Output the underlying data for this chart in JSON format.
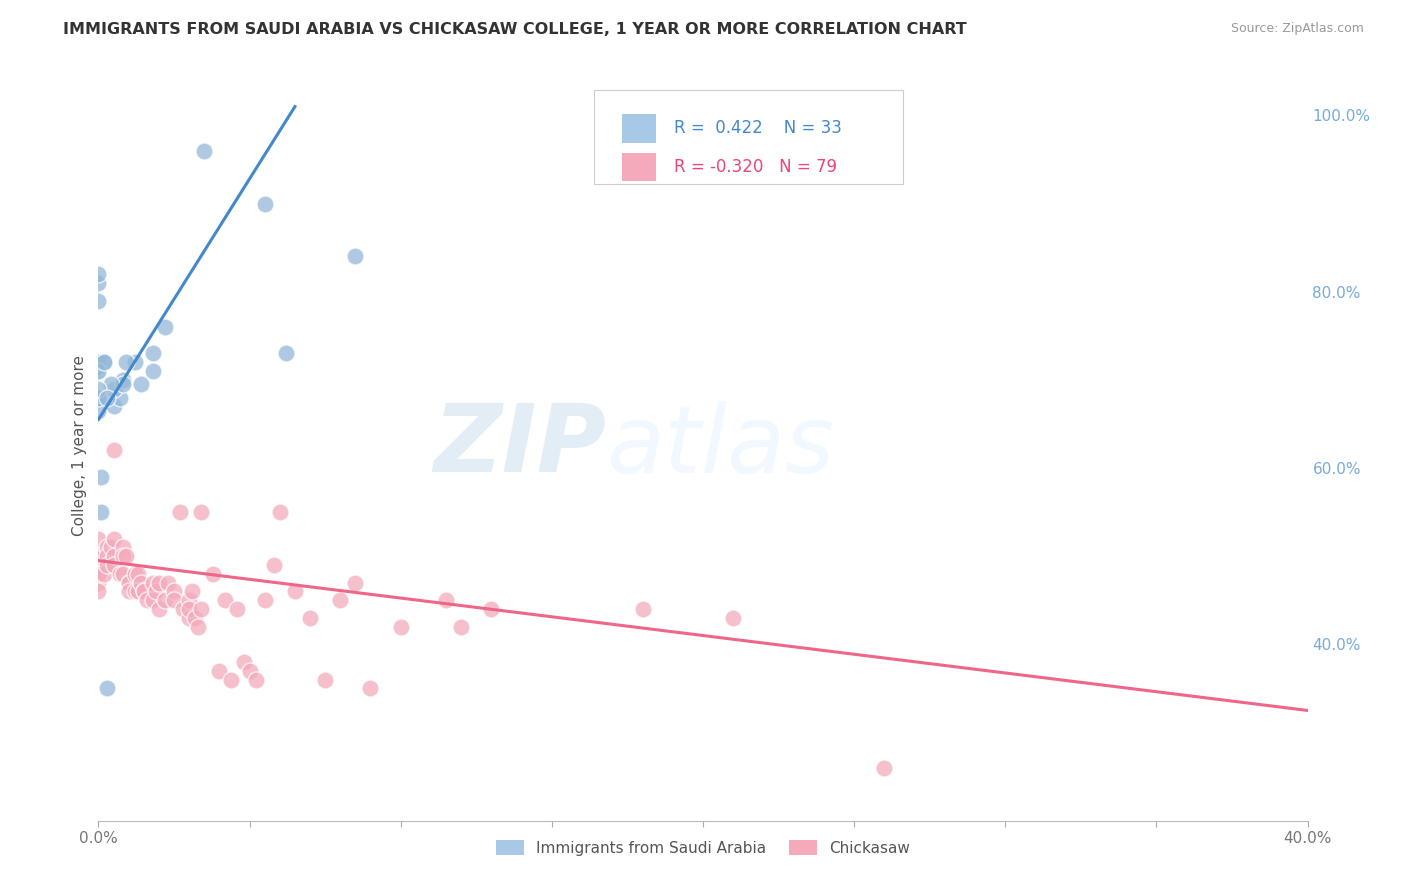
{
  "title": "IMMIGRANTS FROM SAUDI ARABIA VS CHICKASAW COLLEGE, 1 YEAR OR MORE CORRELATION CHART",
  "source": "Source: ZipAtlas.com",
  "ylabel": "College, 1 year or more",
  "xlim": [
    0.0,
    0.4
  ],
  "ylim": [
    0.2,
    1.05
  ],
  "ytick_right_labels": [
    "100.0%",
    "80.0%",
    "60.0%",
    "40.0%"
  ],
  "ytick_right_positions": [
    1.0,
    0.8,
    0.6,
    0.4
  ],
  "blue_color": "#A8C8E8",
  "pink_color": "#F4AABB",
  "blue_dot_color": "#93B8D8",
  "pink_dot_color": "#F4AABB",
  "line_blue_color": "#4488CC",
  "line_pink_color": "#EE6688",
  "legend_R_blue": "0.422",
  "legend_N_blue": "33",
  "legend_R_pink": "-0.320",
  "legend_N_pink": "79",
  "blue_scatter_x": [
    0.035,
    0.0,
    0.0,
    0.005,
    0.007,
    0.012,
    0.014,
    0.018,
    0.018,
    0.005,
    0.008,
    0.008,
    0.009,
    0.0,
    0.0,
    0.0,
    0.0,
    0.002,
    0.004,
    0.0,
    0.0,
    0.002,
    0.003,
    0.0,
    0.0,
    0.0,
    0.022,
    0.055,
    0.001,
    0.003,
    0.062,
    0.085,
    0.001
  ],
  "blue_scatter_y": [
    0.96,
    0.68,
    0.665,
    0.67,
    0.68,
    0.72,
    0.695,
    0.71,
    0.73,
    0.69,
    0.7,
    0.695,
    0.72,
    0.71,
    0.715,
    0.72,
    0.68,
    0.72,
    0.695,
    0.71,
    0.69,
    0.72,
    0.68,
    0.81,
    0.82,
    0.79,
    0.76,
    0.9,
    0.59,
    0.35,
    0.73,
    0.84,
    0.55
  ],
  "pink_scatter_x": [
    0.0,
    0.0,
    0.0,
    0.0,
    0.005,
    0.0,
    0.0,
    0.0,
    0.0,
    0.0,
    0.0,
    0.002,
    0.002,
    0.003,
    0.003,
    0.003,
    0.004,
    0.005,
    0.005,
    0.005,
    0.007,
    0.008,
    0.008,
    0.008,
    0.009,
    0.01,
    0.01,
    0.01,
    0.012,
    0.012,
    0.013,
    0.013,
    0.014,
    0.015,
    0.015,
    0.016,
    0.018,
    0.018,
    0.019,
    0.02,
    0.02,
    0.022,
    0.023,
    0.025,
    0.025,
    0.027,
    0.028,
    0.03,
    0.03,
    0.03,
    0.031,
    0.032,
    0.033,
    0.034,
    0.034,
    0.038,
    0.04,
    0.042,
    0.044,
    0.046,
    0.048,
    0.05,
    0.052,
    0.055,
    0.058,
    0.06,
    0.065,
    0.07,
    0.075,
    0.08,
    0.085,
    0.09,
    0.1,
    0.115,
    0.12,
    0.13,
    0.18,
    0.21,
    0.26
  ],
  "pink_scatter_y": [
    0.52,
    0.5,
    0.5,
    0.49,
    0.62,
    0.49,
    0.48,
    0.48,
    0.47,
    0.48,
    0.46,
    0.5,
    0.48,
    0.51,
    0.5,
    0.49,
    0.51,
    0.52,
    0.5,
    0.49,
    0.48,
    0.51,
    0.5,
    0.48,
    0.5,
    0.47,
    0.47,
    0.46,
    0.48,
    0.46,
    0.48,
    0.46,
    0.47,
    0.46,
    0.46,
    0.45,
    0.47,
    0.45,
    0.46,
    0.47,
    0.44,
    0.45,
    0.47,
    0.46,
    0.45,
    0.55,
    0.44,
    0.45,
    0.43,
    0.44,
    0.46,
    0.43,
    0.42,
    0.55,
    0.44,
    0.48,
    0.37,
    0.45,
    0.36,
    0.44,
    0.38,
    0.37,
    0.36,
    0.45,
    0.49,
    0.55,
    0.46,
    0.43,
    0.36,
    0.45,
    0.47,
    0.35,
    0.42,
    0.45,
    0.42,
    0.44,
    0.44,
    0.43,
    0.26
  ],
  "blue_line_x": [
    0.0,
    0.065
  ],
  "blue_line_y": [
    0.655,
    1.01
  ],
  "pink_line_x": [
    0.0,
    0.4
  ],
  "pink_line_y": [
    0.495,
    0.325
  ]
}
